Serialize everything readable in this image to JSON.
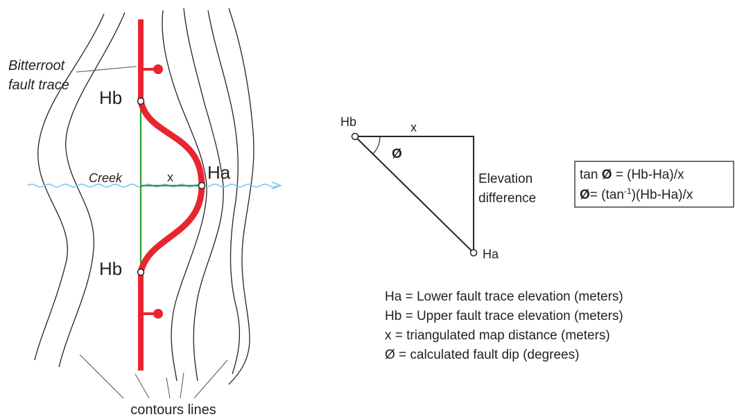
{
  "map": {
    "fault_label": [
      "Bitterroot",
      "fault trace"
    ],
    "upper_label": "Hb",
    "lower_label": "Ha",
    "bottom_label": "Hb",
    "creek_label": "Creek",
    "distance_label": "x",
    "contours_label": "contours lines"
  },
  "triangle": {
    "upper_label": "Hb",
    "distance_label": "x",
    "angle_label": "Ø",
    "side_label": [
      "Elevation",
      "difference"
    ],
    "lower_label": "Ha"
  },
  "formula": {
    "lines": [
      [
        "tan ",
        "Ø",
        " = (Hb-Ha)/x"
      ],
      [
        "Ø",
        "= (tan",
        "-1",
        ")(Hb-Ha)/x"
      ]
    ]
  },
  "legend": [
    "Ha = Lower fault trace elevation (meters)",
    "Hb = Upper fault trace elevation (meters)",
    "x = triangulated map distance (meters)",
    "Ø = calculated fault dip (degrees)"
  ]
}
